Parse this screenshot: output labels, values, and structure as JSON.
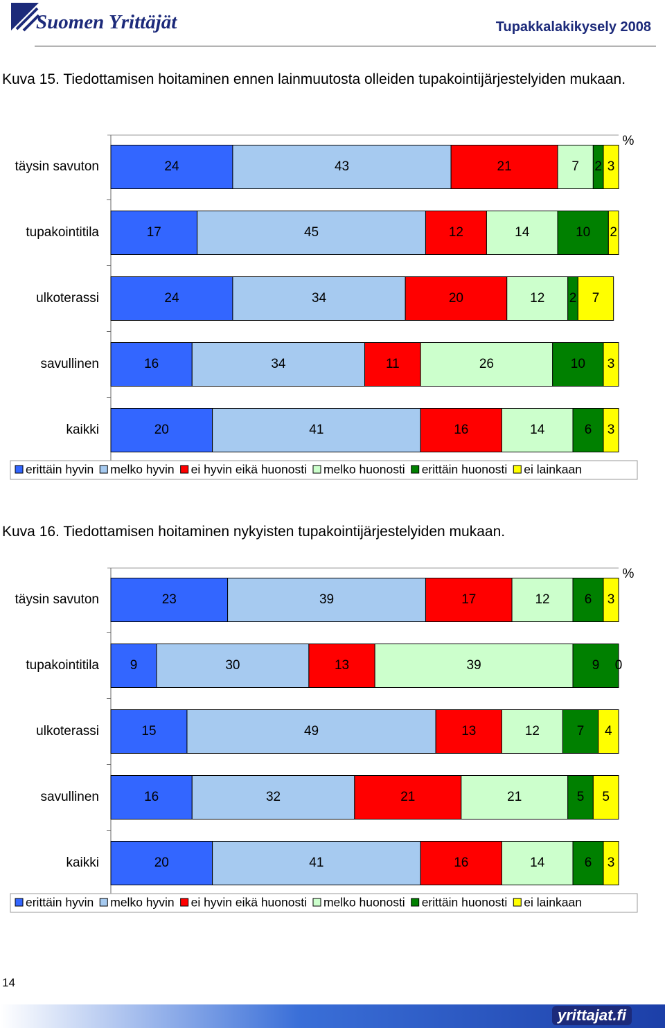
{
  "header": {
    "logo": "Suomen Yrittäjät",
    "title": "Tupakkalakikysely 2008"
  },
  "chart_data": [
    {
      "type": "bar",
      "orientation": "horizontal",
      "stacked": true,
      "title": "Kuva 15. Tiedottamisen hoitaminen ennen lainmuutosta olleiden tupakointijärjestelyiden mukaan.",
      "unit": "%",
      "xlim": [
        0,
        100
      ],
      "categories": [
        "täysin savuton",
        "tupakointitila",
        "ulkoterassi",
        "savullinen",
        "kaikki"
      ],
      "series": [
        {
          "name": "erittäin hyvin",
          "color": "#3366ff",
          "values": [
            24,
            17,
            24,
            16,
            20
          ]
        },
        {
          "name": "melko hyvin",
          "color": "#a6caf0",
          "values": [
            43,
            45,
            34,
            34,
            41
          ]
        },
        {
          "name": "ei hyvin eikä huonosti",
          "color": "#ff0000",
          "values": [
            21,
            12,
            20,
            11,
            16
          ]
        },
        {
          "name": "melko huonosti",
          "color": "#ccffcc",
          "values": [
            7,
            14,
            12,
            26,
            14
          ]
        },
        {
          "name": "erittäin huonosti",
          "color": "#008000",
          "values": [
            2,
            10,
            2,
            10,
            6
          ]
        },
        {
          "name": "ei lainkaan",
          "color": "#ffff00",
          "values": [
            3,
            2,
            7,
            3,
            3
          ]
        }
      ],
      "legend": "bottom"
    },
    {
      "type": "bar",
      "orientation": "horizontal",
      "stacked": true,
      "title": "Kuva 16. Tiedottamisen hoitaminen nykyisten tupakointijärjestelyiden mukaan.",
      "unit": "%",
      "xlim": [
        0,
        100
      ],
      "categories": [
        "täysin savuton",
        "tupakointitila",
        "ulkoterassi",
        "savullinen",
        "kaikki"
      ],
      "series": [
        {
          "name": "erittäin hyvin",
          "color": "#3366ff",
          "values": [
            23,
            9,
            15,
            16,
            20
          ]
        },
        {
          "name": "melko hyvin",
          "color": "#a6caf0",
          "values": [
            39,
            30,
            49,
            32,
            41
          ]
        },
        {
          "name": "ei hyvin eikä huonosti",
          "color": "#ff0000",
          "values": [
            17,
            13,
            13,
            21,
            16
          ]
        },
        {
          "name": "melko huonosti",
          "color": "#ccffcc",
          "values": [
            12,
            39,
            12,
            21,
            14
          ]
        },
        {
          "name": "erittäin huonosti",
          "color": "#008000",
          "values": [
            6,
            9,
            7,
            5,
            6
          ]
        },
        {
          "name": "ei lainkaan",
          "color": "#ffff00",
          "values": [
            3,
            0,
            4,
            5,
            3
          ]
        }
      ],
      "legend": "bottom"
    }
  ],
  "footer": {
    "page": "14",
    "logo": "yrittajat.fi"
  }
}
